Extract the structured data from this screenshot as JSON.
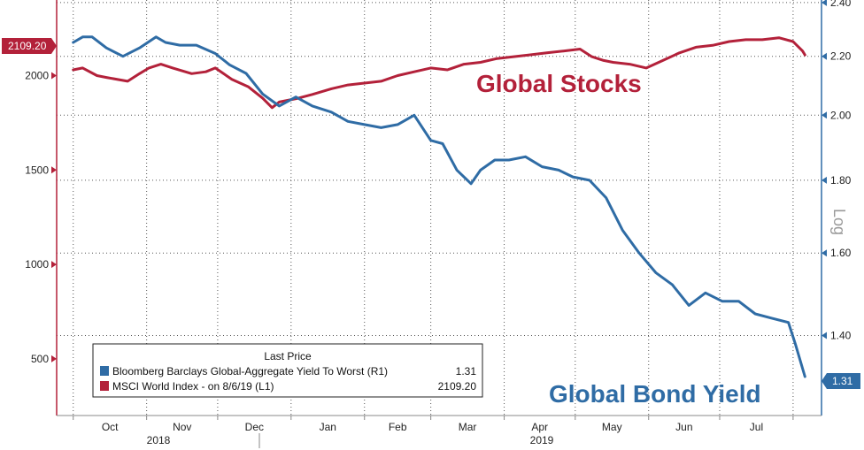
{
  "chart_data": {
    "type": "line",
    "y_axis_left": {
      "min": 200,
      "max": 2400,
      "ticks": [
        500,
        1000,
        1500,
        2000
      ],
      "series": "MSCI World Index"
    },
    "y_axis_right": {
      "min": 1.23,
      "max": 2.41,
      "ticks": [
        "2.40",
        "2.20",
        "2.00",
        "1.80",
        "1.60",
        "1.40"
      ],
      "scale": "log",
      "label": "Log"
    },
    "x_axis": {
      "months": [
        "Oct",
        "Nov",
        "Dec",
        "Jan",
        "Feb",
        "Mar",
        "Apr",
        "May",
        "Jun",
        "Jul"
      ],
      "years": [
        "2018",
        "2019"
      ]
    },
    "grid": true,
    "legend": {
      "placement": "bottom-left",
      "title": "Last Price",
      "entries": [
        {
          "label": "Bloomberg Barclays Global-Aggregate Yield To Worst  (R1)",
          "value": "1.31",
          "color": "#2f6ca5"
        },
        {
          "label": "MSCI World Index -  on 8/6/19  (L1)",
          "value": "2109.20",
          "color": "#b3213a"
        }
      ]
    },
    "annotations": {
      "stocks_label": "Global Stocks",
      "bond_label": "Global Bond Yield",
      "stocks_last": "2109.20",
      "bond_last": "1.31"
    },
    "series": [
      {
        "name": "MSCI World Index",
        "axis": "left",
        "color": "#b3213a",
        "x": [
          "2018-10-01",
          "2018-10-05",
          "2018-10-11",
          "2018-10-15",
          "2018-10-24",
          "2018-10-29",
          "2018-11-02",
          "2018-11-07",
          "2018-11-12",
          "2018-11-20",
          "2018-11-26",
          "2018-11-30",
          "2018-12-07",
          "2018-12-14",
          "2018-12-20",
          "2018-12-24",
          "2018-12-27",
          "2019-01-04",
          "2019-01-10",
          "2019-01-18",
          "2019-01-25",
          "2019-02-01",
          "2019-02-08",
          "2019-02-15",
          "2019-02-22",
          "2019-03-01",
          "2019-03-08",
          "2019-03-15",
          "2019-03-22",
          "2019-03-29",
          "2019-04-05",
          "2019-04-12",
          "2019-04-19",
          "2019-04-26",
          "2019-05-03",
          "2019-05-08",
          "2019-05-13",
          "2019-05-17",
          "2019-05-24",
          "2019-05-31",
          "2019-06-07",
          "2019-06-14",
          "2019-06-21",
          "2019-06-28",
          "2019-07-05",
          "2019-07-12",
          "2019-07-19",
          "2019-07-26",
          "2019-08-01",
          "2019-08-05",
          "2019-08-06"
        ],
        "values": [
          2030,
          2040,
          2000,
          1990,
          1970,
          2010,
          2040,
          2060,
          2040,
          2010,
          2020,
          2040,
          1980,
          1940,
          1880,
          1830,
          1860,
          1880,
          1900,
          1930,
          1950,
          1960,
          1970,
          2000,
          2020,
          2040,
          2030,
          2060,
          2070,
          2090,
          2100,
          2110,
          2120,
          2130,
          2140,
          2100,
          2080,
          2070,
          2060,
          2040,
          2080,
          2120,
          2150,
          2160,
          2180,
          2190,
          2190,
          2200,
          2180,
          2130,
          2109.2
        ]
      },
      {
        "name": "Bloomberg Barclays Global-Aggregate Yield To Worst",
        "axis": "right",
        "color": "#2f6ca5",
        "x": [
          "2018-10-01",
          "2018-10-05",
          "2018-10-09",
          "2018-10-15",
          "2018-10-22",
          "2018-10-29",
          "2018-11-05",
          "2018-11-09",
          "2018-11-15",
          "2018-11-22",
          "2018-11-30",
          "2018-12-06",
          "2018-12-13",
          "2018-12-20",
          "2018-12-27",
          "2019-01-03",
          "2019-01-10",
          "2019-01-18",
          "2019-01-25",
          "2019-02-01",
          "2019-02-08",
          "2019-02-15",
          "2019-02-22",
          "2019-03-01",
          "2019-03-06",
          "2019-03-12",
          "2019-03-18",
          "2019-03-22",
          "2019-03-28",
          "2019-04-03",
          "2019-04-10",
          "2019-04-17",
          "2019-04-24",
          "2019-04-30",
          "2019-05-07",
          "2019-05-14",
          "2019-05-21",
          "2019-05-28",
          "2019-06-04",
          "2019-06-11",
          "2019-06-18",
          "2019-06-25",
          "2019-07-02",
          "2019-07-09",
          "2019-07-16",
          "2019-07-23",
          "2019-07-30",
          "2019-08-02",
          "2019-08-06"
        ],
        "values": [
          2.25,
          2.27,
          2.27,
          2.23,
          2.2,
          2.23,
          2.27,
          2.25,
          2.24,
          2.24,
          2.21,
          2.17,
          2.14,
          2.07,
          2.03,
          2.06,
          2.03,
          2.01,
          1.98,
          1.97,
          1.96,
          1.97,
          2.0,
          1.92,
          1.91,
          1.83,
          1.79,
          1.83,
          1.86,
          1.86,
          1.87,
          1.84,
          1.83,
          1.81,
          1.8,
          1.75,
          1.66,
          1.6,
          1.55,
          1.52,
          1.47,
          1.5,
          1.48,
          1.48,
          1.45,
          1.44,
          1.43,
          1.38,
          1.31
        ]
      }
    ]
  }
}
